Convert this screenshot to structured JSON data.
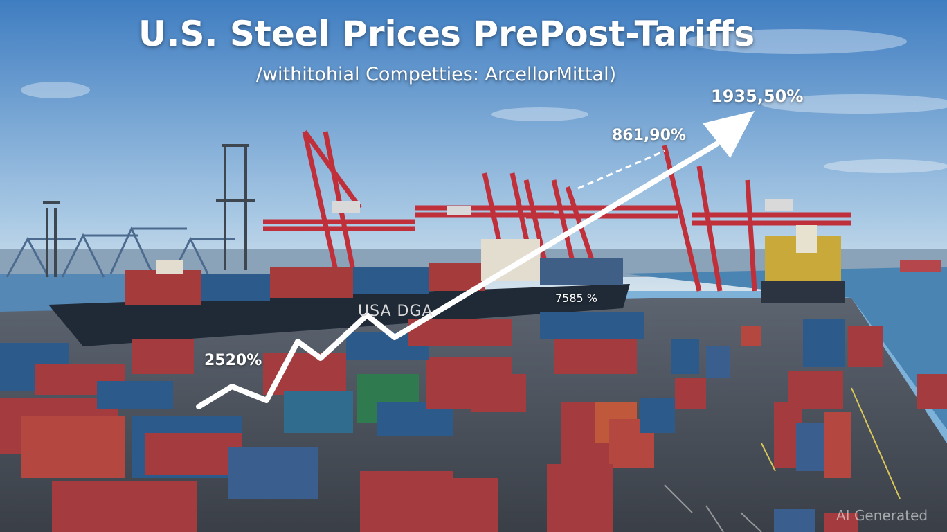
{
  "title": "U.S. Steel Prices PrePost-Tariffs",
  "subtitle": "/withitohial Competties: ArcellorMittal)",
  "labels": {
    "top": "1935,50%",
    "upper": "861,90%",
    "ship": "7585 %",
    "left": "2520%"
  },
  "ship_text": "USA DGA",
  "watermark": "AI Generated",
  "colors": {
    "sky_top": "#3f7dc1",
    "sky_bottom": "#c8dceb",
    "water": "#4a84b3",
    "crane": "#c0303a",
    "arrow": "#ffffff"
  }
}
